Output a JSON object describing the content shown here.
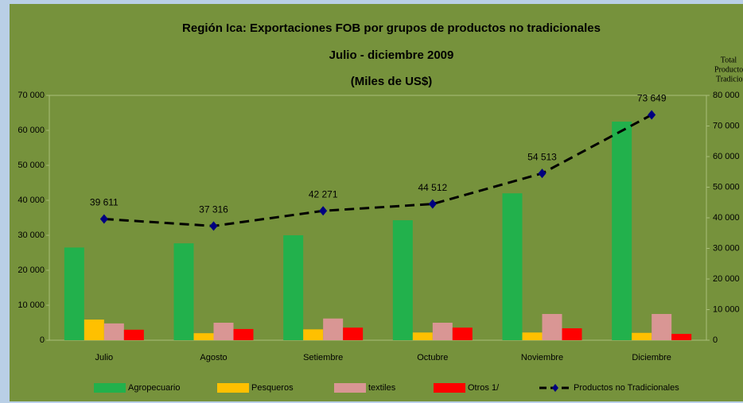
{
  "chart_data": {
    "type": "bar",
    "title": "Región Ica: Exportaciones FOB por grupos de productos no tradicionales",
    "subtitle": "Julio - diciembre 2009",
    "unit": "(Miles de US$)",
    "y2_label": [
      "Total",
      "Producto N",
      "Tradiciona"
    ],
    "categories": [
      "Julio",
      "Agosto",
      "Setiembre",
      "Octubre",
      "Noviembre",
      "Diciembre"
    ],
    "series": [
      {
        "name": "Agropecuario",
        "color": "#22b14c",
        "values": [
          26500,
          27700,
          30000,
          34300,
          42000,
          62500
        ]
      },
      {
        "name": "Pesqueros",
        "color": "#ffc000",
        "values": [
          5900,
          2000,
          3100,
          2200,
          2200,
          2100
        ]
      },
      {
        "name": "textiles",
        "color": "#d99694",
        "values": [
          4800,
          5000,
          6200,
          5000,
          7500,
          7500
        ]
      },
      {
        "name": "Otros 1/",
        "color": "#ff0000",
        "values": [
          3000,
          3200,
          3600,
          3600,
          3400,
          1800
        ]
      },
      {
        "name": "Productos no Tradicionales",
        "type": "line",
        "axis": "y2",
        "color": "#000080",
        "values": [
          39611,
          37316,
          42271,
          44512,
          54513,
          73649
        ],
        "value_labels": [
          "39 611",
          "37 316",
          "42 271",
          "44 512",
          "54 513",
          "73 649"
        ]
      }
    ],
    "ylim": [
      0,
      70000
    ],
    "yticks": [
      0,
      {
        "value": 10000,
        "label": "10 000"
      },
      {
        "value": 20000,
        "label": "20 000"
      },
      {
        "value": 30000,
        "label": "30 000"
      },
      {
        "value": 40000,
        "label": "40 000"
      },
      {
        "value": 50000,
        "label": "50 000"
      },
      {
        "value": 60000,
        "label": "60 000"
      },
      {
        "value": 70000,
        "label": "70 000"
      }
    ],
    "y2lim": [
      0,
      80000
    ],
    "y2ticks": [
      0,
      {
        "value": 10000,
        "label": "10 000"
      },
      {
        "value": 20000,
        "label": "20 000"
      },
      {
        "value": 30000,
        "label": "30 000"
      },
      {
        "value": 40000,
        "label": "40 000"
      },
      {
        "value": 50000,
        "label": "50 000"
      },
      {
        "value": 60000,
        "label": "60 000"
      },
      {
        "value": 70000,
        "label": "70 000"
      },
      {
        "value": 80000,
        "label": "80 000"
      }
    ],
    "legend": "bottom"
  }
}
